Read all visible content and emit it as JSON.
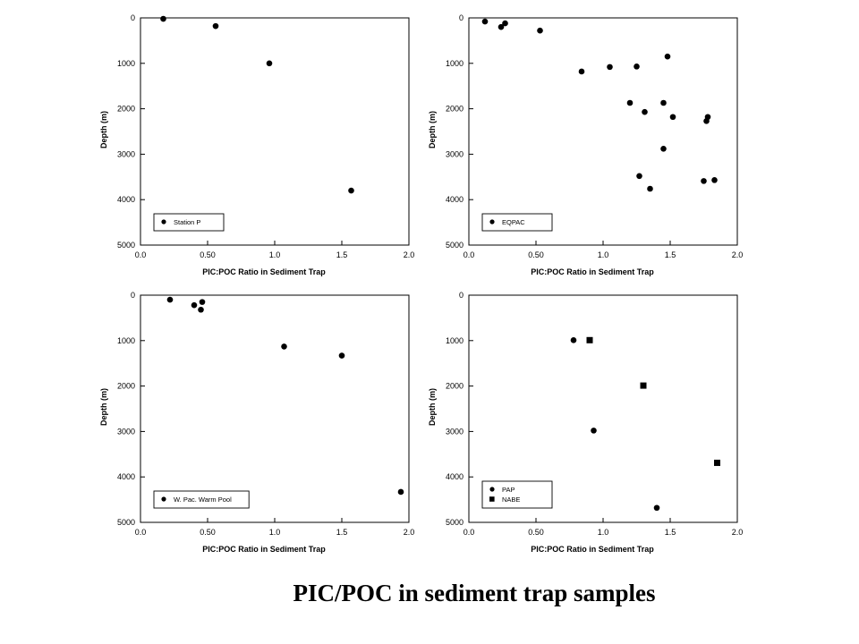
{
  "caption": "PIC/POC in sediment trap samples",
  "chart_data": [
    {
      "type": "scatter",
      "xlabel": "PIC:POC Ratio in Sediment Trap",
      "ylabel": "Depth (m)",
      "xlim": [
        0,
        2.0
      ],
      "ylim": [
        0,
        5000
      ],
      "y_inverted": true,
      "x_ticks": [
        "0.0",
        "0.50",
        "1.0",
        "1.5",
        "2.0"
      ],
      "y_ticks": [
        "0",
        "1000",
        "2000",
        "3000",
        "4000",
        "5000"
      ],
      "grid": false,
      "legend": "bottom-left",
      "series": [
        {
          "name": "Station P",
          "marker": "circle",
          "points": [
            [
              0.17,
              20
            ],
            [
              0.56,
              180
            ],
            [
              0.96,
              1000
            ],
            [
              1.57,
              3800
            ]
          ]
        }
      ]
    },
    {
      "type": "scatter",
      "xlabel": "PIC:POC Ratio in Sediment Trap",
      "ylabel": "Depth (m)",
      "xlim": [
        0,
        2.0
      ],
      "ylim": [
        0,
        5000
      ],
      "y_inverted": true,
      "x_ticks": [
        "0.0",
        "0.50",
        "1.0",
        "1.5",
        "2.0"
      ],
      "y_ticks": [
        "0",
        "1000",
        "2000",
        "3000",
        "4000",
        "5000"
      ],
      "grid": false,
      "legend": "bottom-left",
      "series": [
        {
          "name": "EQPAC",
          "marker": "circle",
          "points": [
            [
              0.12,
              80
            ],
            [
              0.24,
              200
            ],
            [
              0.27,
              120
            ],
            [
              0.53,
              280
            ],
            [
              0.84,
              1180
            ],
            [
              1.05,
              1080
            ],
            [
              1.25,
              1070
            ],
            [
              1.48,
              850
            ],
            [
              1.2,
              1870
            ],
            [
              1.31,
              2070
            ],
            [
              1.45,
              1870
            ],
            [
              1.52,
              2180
            ],
            [
              1.78,
              2180
            ],
            [
              1.77,
              2270
            ],
            [
              1.45,
              2880
            ],
            [
              1.27,
              3480
            ],
            [
              1.35,
              3760
            ],
            [
              1.75,
              3590
            ],
            [
              1.83,
              3570
            ]
          ]
        }
      ]
    },
    {
      "type": "scatter",
      "xlabel": "PIC:POC Ratio in Sediment Trap",
      "ylabel": "Depth (m)",
      "xlim": [
        0,
        2.0
      ],
      "ylim": [
        0,
        5000
      ],
      "y_inverted": true,
      "x_ticks": [
        "0.0",
        "0.50",
        "1.0",
        "1.5",
        "2.0"
      ],
      "y_ticks": [
        "0",
        "1000",
        "2000",
        "3000",
        "4000",
        "5000"
      ],
      "grid": false,
      "legend": "bottom-left",
      "series": [
        {
          "name": "W. Pac. Warm Pool",
          "marker": "circle",
          "points": [
            [
              0.22,
              100
            ],
            [
              0.4,
              220
            ],
            [
              0.46,
              150
            ],
            [
              0.45,
              320
            ],
            [
              1.07,
              1130
            ],
            [
              1.5,
              1330
            ],
            [
              1.94,
              4330
            ]
          ]
        }
      ]
    },
    {
      "type": "scatter",
      "xlabel": "PIC:POC Ratio in Sediment Trap",
      "ylabel": "Depth (m)",
      "xlim": [
        0,
        2.0
      ],
      "ylim": [
        0,
        5000
      ],
      "y_inverted": true,
      "x_ticks": [
        "0.0",
        "0.50",
        "1.0",
        "1.5",
        "2.0"
      ],
      "y_ticks": [
        "0",
        "1000",
        "2000",
        "3000",
        "4000",
        "5000"
      ],
      "grid": false,
      "legend": "bottom-left",
      "series": [
        {
          "name": "PAP",
          "marker": "circle",
          "points": [
            [
              0.78,
              990
            ],
            [
              0.93,
              2980
            ],
            [
              1.4,
              4680
            ]
          ]
        },
        {
          "name": "NABE",
          "marker": "square",
          "points": [
            [
              0.9,
              990
            ],
            [
              1.3,
              1990
            ],
            [
              1.85,
              3690
            ]
          ]
        }
      ]
    }
  ]
}
